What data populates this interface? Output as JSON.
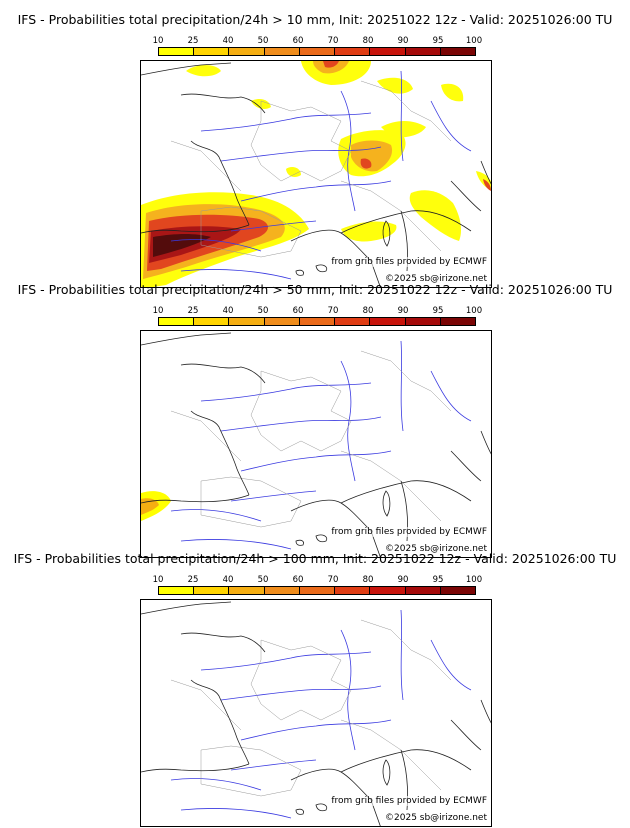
{
  "colors": [
    "#ffff00",
    "#ffd400",
    "#f5ae12",
    "#f08d1c",
    "#ea6a1a",
    "#e03d14",
    "#c8140c",
    "#a50a0a",
    "#7a0505",
    "#4a0000"
  ],
  "scale_ticks": [
    "10",
    "25",
    "40",
    "50",
    "60",
    "70",
    "80",
    "90",
    "95",
    "100"
  ],
  "panels": [
    {
      "title": "IFS - Probabilities total precipitation/24h > 10 mm, Init: 20251022 12z - Valid: 20251026:00 TU",
      "source": "from grib files provided by ECMWF",
      "copyright": "©2025 sb@irizone.net"
    },
    {
      "title": "IFS - Probabilities total precipitation/24h > 50 mm, Init: 20251022 12z - Valid: 20251026:00 TU",
      "source": "from grib files provided by ECMWF",
      "copyright": "©2025 sb@irizone.net"
    },
    {
      "title": "IFS - Probabilities total precipitation/24h > 100 mm, Init: 20251022 12z - Valid: 20251026:00 TU",
      "source": "from grib files provided by ECMWF",
      "copyright": "©2025 sb@irizone.net"
    }
  ]
}
